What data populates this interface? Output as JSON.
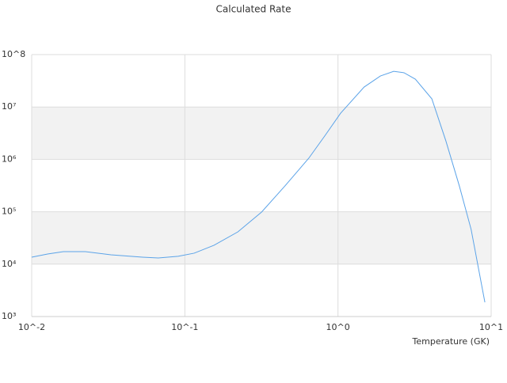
{
  "chart_data": {
    "type": "line",
    "title": "Calculated Rate",
    "x_label": "Temperature (GK)",
    "xscale": "log",
    "yscale": "log",
    "xlim": [
      0.01,
      10
    ],
    "ylim": [
      1000,
      100000000
    ],
    "xticks": [
      {
        "value": 0.01,
        "label": "10^-2"
      },
      {
        "value": 0.1,
        "label": "10^-1"
      },
      {
        "value": 1,
        "label": "10^0"
      },
      {
        "value": 10,
        "label": "10^1"
      }
    ],
    "yticks": [
      {
        "value": 1000,
        "label": "10³"
      },
      {
        "value": 10000,
        "label": "10⁴"
      },
      {
        "value": 100000,
        "label": "10⁵"
      },
      {
        "value": 1000000,
        "label": "10⁶"
      },
      {
        "value": 10000000,
        "label": "10⁷"
      },
      {
        "value": 100000000,
        "label": "10^8"
      }
    ],
    "band_color": "#f2f2f2",
    "x": [
      0.01,
      0.0127,
      0.0161,
      0.0224,
      0.0329,
      0.0529,
      0.0671,
      0.0904,
      0.115,
      0.155,
      0.222,
      0.317,
      0.45,
      0.644,
      0.818,
      1.04,
      1.48,
      1.89,
      2.31,
      2.7,
      3.2,
      4.1,
      5.06,
      6.2,
      7.4,
      9.1
    ],
    "series": [
      {
        "color": "#5ba3e8",
        "values": [
          13600,
          15600,
          17300,
          17300,
          15100,
          13600,
          13100,
          14100,
          16200,
          22900,
          41300,
          98600,
          310000,
          1050000,
          2780000,
          7600000,
          24000000,
          39000000,
          48000000,
          45000000,
          34000000,
          14300000,
          2260000,
          310000,
          46000,
          1870
        ]
      }
    ]
  }
}
